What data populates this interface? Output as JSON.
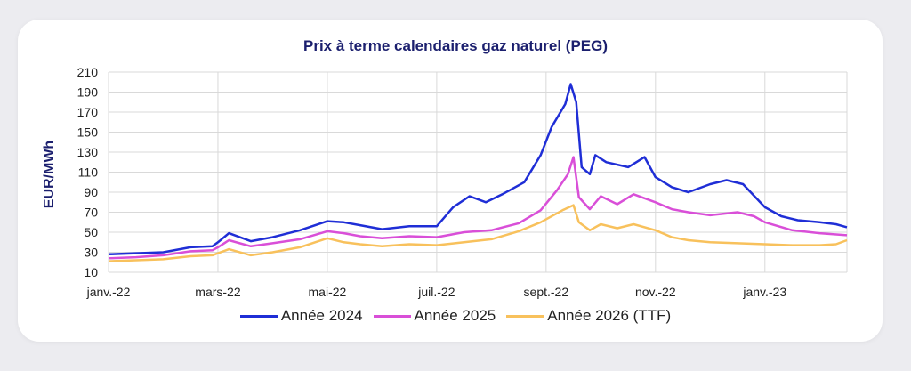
{
  "chart_data": {
    "type": "line",
    "title": "Prix à terme calendaires gaz naturel (PEG)",
    "ylabel": "EUR/MWh",
    "xlabel": "",
    "ylim": [
      10,
      210
    ],
    "yticks": [
      10,
      30,
      50,
      70,
      90,
      110,
      130,
      150,
      170,
      190,
      210
    ],
    "grid": true,
    "legend_position": "bottom",
    "xtick_labels": [
      "janv.-22",
      "mars-22",
      "mai-22",
      "juil.-22",
      "sept.-22",
      "nov.-22",
      "janv.-23"
    ],
    "xtick_positions": [
      0,
      2,
      4,
      6,
      8,
      10,
      12
    ],
    "x_max": 13.5,
    "series": [
      {
        "name": "Année 2024",
        "color": "#1f2ed6",
        "points": [
          [
            0,
            28
          ],
          [
            0.5,
            29
          ],
          [
            1,
            30
          ],
          [
            1.5,
            35
          ],
          [
            1.9,
            36
          ],
          [
            2,
            40
          ],
          [
            2.2,
            49
          ],
          [
            2.6,
            41
          ],
          [
            3,
            45
          ],
          [
            3.5,
            52
          ],
          [
            4,
            61
          ],
          [
            4.3,
            60
          ],
          [
            4.6,
            57
          ],
          [
            5,
            53
          ],
          [
            5.5,
            56
          ],
          [
            6,
            56
          ],
          [
            6.3,
            75
          ],
          [
            6.6,
            86
          ],
          [
            6.9,
            80
          ],
          [
            7.2,
            88
          ],
          [
            7.6,
            100
          ],
          [
            7.9,
            127
          ],
          [
            8.1,
            155
          ],
          [
            8.35,
            178
          ],
          [
            8.45,
            198
          ],
          [
            8.55,
            180
          ],
          [
            8.65,
            115
          ],
          [
            8.8,
            108
          ],
          [
            8.9,
            127
          ],
          [
            9.1,
            120
          ],
          [
            9.5,
            115
          ],
          [
            9.8,
            125
          ],
          [
            10,
            105
          ],
          [
            10.3,
            95
          ],
          [
            10.6,
            90
          ],
          [
            11,
            98
          ],
          [
            11.3,
            102
          ],
          [
            11.6,
            98
          ],
          [
            12,
            75
          ],
          [
            12.3,
            66
          ],
          [
            12.6,
            62
          ],
          [
            13,
            60
          ],
          [
            13.3,
            58
          ],
          [
            13.5,
            55
          ]
        ]
      },
      {
        "name": "Année 2025",
        "color": "#d94fd8",
        "points": [
          [
            0,
            24
          ],
          [
            0.5,
            25
          ],
          [
            1,
            27
          ],
          [
            1.5,
            31
          ],
          [
            1.9,
            32
          ],
          [
            2,
            35
          ],
          [
            2.2,
            42
          ],
          [
            2.6,
            36
          ],
          [
            3,
            39
          ],
          [
            3.5,
            43
          ],
          [
            4,
            51
          ],
          [
            4.3,
            49
          ],
          [
            4.6,
            46
          ],
          [
            5,
            44
          ],
          [
            5.5,
            46
          ],
          [
            6,
            45
          ],
          [
            6.5,
            50
          ],
          [
            7,
            52
          ],
          [
            7.5,
            59
          ],
          [
            7.9,
            72
          ],
          [
            8.2,
            92
          ],
          [
            8.4,
            108
          ],
          [
            8.5,
            125
          ],
          [
            8.6,
            85
          ],
          [
            8.8,
            73
          ],
          [
            9,
            86
          ],
          [
            9.3,
            78
          ],
          [
            9.6,
            88
          ],
          [
            10,
            80
          ],
          [
            10.3,
            73
          ],
          [
            10.6,
            70
          ],
          [
            11,
            67
          ],
          [
            11.5,
            70
          ],
          [
            11.8,
            66
          ],
          [
            12,
            60
          ],
          [
            12.5,
            52
          ],
          [
            13,
            49
          ],
          [
            13.5,
            47
          ]
        ]
      },
      {
        "name": "Année 2026 (TTF)",
        "color": "#f8c15c",
        "points": [
          [
            0,
            21
          ],
          [
            0.5,
            22
          ],
          [
            1,
            23
          ],
          [
            1.5,
            26
          ],
          [
            1.9,
            27
          ],
          [
            2,
            29
          ],
          [
            2.2,
            33
          ],
          [
            2.6,
            27
          ],
          [
            3,
            30
          ],
          [
            3.5,
            35
          ],
          [
            4,
            44
          ],
          [
            4.3,
            40
          ],
          [
            4.6,
            38
          ],
          [
            5,
            36
          ],
          [
            5.5,
            38
          ],
          [
            6,
            37
          ],
          [
            6.5,
            40
          ],
          [
            7,
            43
          ],
          [
            7.5,
            51
          ],
          [
            7.9,
            60
          ],
          [
            8.3,
            72
          ],
          [
            8.5,
            77
          ],
          [
            8.6,
            60
          ],
          [
            8.8,
            52
          ],
          [
            9,
            58
          ],
          [
            9.3,
            54
          ],
          [
            9.6,
            58
          ],
          [
            10,
            52
          ],
          [
            10.3,
            45
          ],
          [
            10.6,
            42
          ],
          [
            11,
            40
          ],
          [
            11.5,
            39
          ],
          [
            12,
            38
          ],
          [
            12.5,
            37
          ],
          [
            13,
            37
          ],
          [
            13.3,
            38
          ],
          [
            13.5,
            42
          ]
        ]
      }
    ]
  }
}
